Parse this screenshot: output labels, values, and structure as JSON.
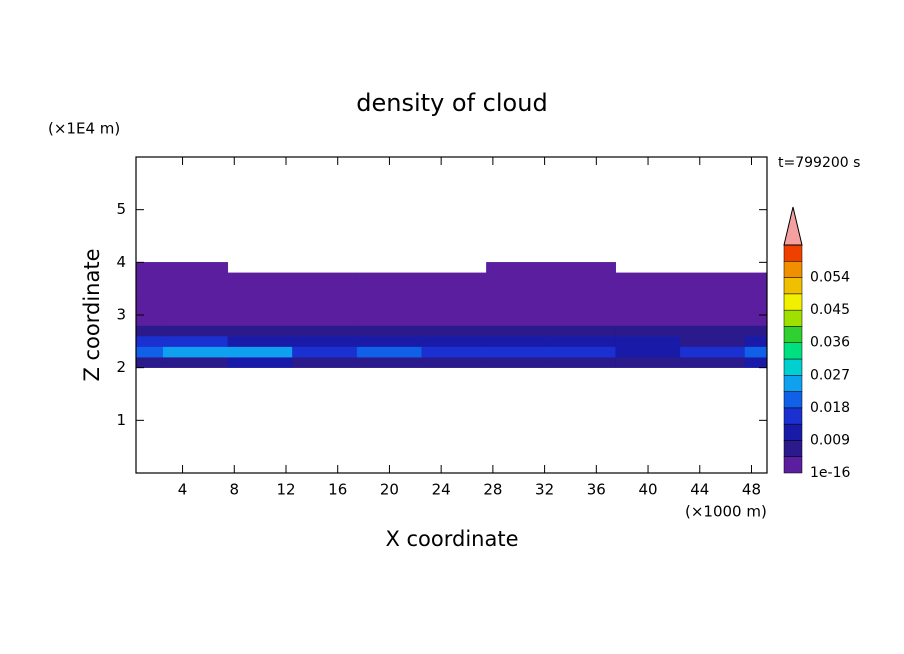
{
  "chart_data": {
    "type": "contour",
    "title": "density of cloud",
    "x_label": "X coordinate",
    "y_label": "Z coordinate",
    "x_unit": "(×1000 m)",
    "y_unit": "(×1E4 m)",
    "time_label": "t=799200 s",
    "xlim": [
      0.4,
      49.2
    ],
    "xticks": [
      4,
      8,
      12,
      16,
      20,
      24,
      28,
      32,
      36,
      40,
      44,
      48
    ],
    "ylim": [
      0,
      6
    ],
    "yticks": [
      1,
      2,
      3,
      4,
      5
    ],
    "x": [
      0,
      5,
      10,
      15,
      20,
      25,
      30,
      35,
      40,
      45,
      50
    ],
    "z": [
      2.1,
      2.3,
      2.5,
      2.7,
      2.9,
      3.1,
      3.3,
      3.5,
      3.7,
      3.9
    ],
    "values": [
      [
        0.008,
        0.009,
        0.01,
        0.008,
        0.007,
        0.006,
        0.007,
        0.006,
        0.008,
        0.009,
        0.01
      ],
      [
        0.022,
        0.024,
        0.026,
        0.018,
        0.02,
        0.016,
        0.014,
        0.018,
        0.012,
        0.016,
        0.02
      ],
      [
        0.014,
        0.016,
        0.012,
        0.01,
        0.012,
        0.011,
        0.01,
        0.013,
        0.01,
        0.009,
        0.012
      ],
      [
        0.006,
        0.007,
        0.005,
        0.006,
        0.007,
        0.008,
        0.009,
        0.007,
        0.006,
        0.007,
        0.005
      ],
      [
        0.003,
        0.004,
        0.003,
        0.002,
        0.003,
        0.004,
        0.003,
        0.003,
        0.002,
        0.003,
        0.003
      ],
      [
        0.002,
        0.002,
        0.003,
        0.002,
        0.002,
        0.002,
        0.002,
        0.002,
        0.002,
        0.002,
        0.002
      ],
      [
        0.001,
        0.001,
        0.001,
        0.001,
        0.001,
        0.001,
        0.001,
        0.001,
        0.001,
        0.001,
        0.001
      ],
      [
        0.001,
        0.001,
        0.001,
        0.001,
        0.001,
        0.001,
        0.001,
        0.001,
        0.001,
        0.001,
        0.001
      ],
      [
        0.0005,
        0.0005,
        0.0005,
        0.0005,
        0.0005,
        0.0005,
        0.0005,
        0.0005,
        0.0005,
        0.0005,
        0.0005
      ],
      [
        0.0003,
        0.0003,
        null,
        null,
        null,
        null,
        0.0003,
        0.0003,
        null,
        null,
        null
      ]
    ],
    "clim": [
      1e-16,
      0.063
    ],
    "cticks": [
      1e-16,
      0.009,
      0.018,
      0.027,
      0.036,
      0.045,
      0.054
    ],
    "colors": [
      "#5a1e9e",
      "#2a1a8c",
      "#1a1aa8",
      "#1a30d0",
      "#1060e8",
      "#10a0f0",
      "#00d0d0",
      "#00e080",
      "#30d030",
      "#a0e000",
      "#f0f000",
      "#f0c000",
      "#f09000",
      "#f04000"
    ],
    "over_color": "#f4a0a0"
  }
}
